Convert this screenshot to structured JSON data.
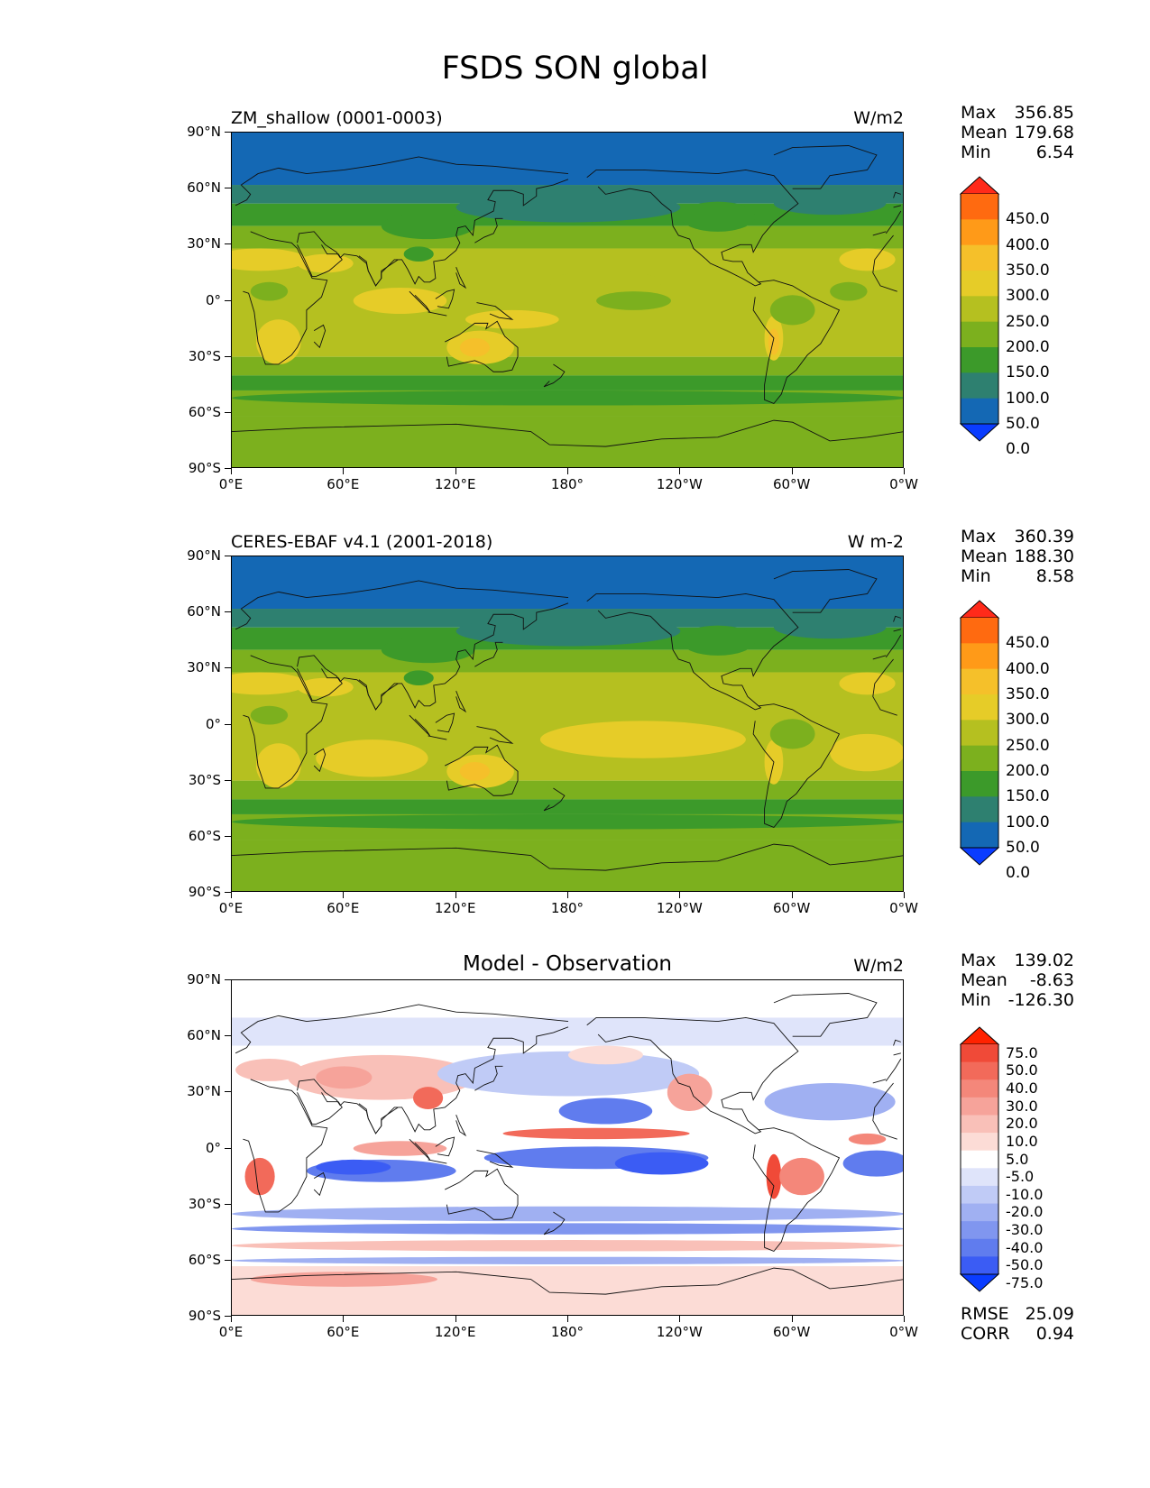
{
  "title": "FSDS SON global",
  "axes": {
    "lat_ticks": [
      "90°N",
      "60°N",
      "30°N",
      "0°",
      "30°S",
      "60°S",
      "90°S"
    ],
    "lon_ticks": [
      "0°E",
      "60°E",
      "120°E",
      "180°",
      "120°W",
      "60°W",
      "0°W"
    ]
  },
  "stat_labels": {
    "max": "Max",
    "mean": "Mean",
    "min": "Min",
    "rmse": "RMSE",
    "corr": "CORR"
  },
  "panels": [
    {
      "title": "ZM_shallow (0001-0003)",
      "units": "W/m2",
      "stats": {
        "max": "356.85",
        "mean": "179.68",
        "min": "6.54"
      }
    },
    {
      "title": "CERES-EBAF v4.1 (2001-2018)",
      "units": "W m-2",
      "stats": {
        "max": "360.39",
        "mean": "188.30",
        "min": "8.58"
      }
    },
    {
      "title": "Model - Observation",
      "units": "W/m2",
      "stats": {
        "max": "139.02",
        "mean": "-8.63",
        "min": "-126.30",
        "rmse": "25.09",
        "corr": "0.94"
      }
    }
  ],
  "colorbars": {
    "field": {
      "labels": [
        "450.0",
        "400.0",
        "350.0",
        "300.0",
        "250.0",
        "200.0",
        "150.0",
        "100.0",
        "50.0",
        "0.0"
      ],
      "colors": [
        "#ff2a1a",
        "#ff6a10",
        "#ff9a18",
        "#f5c02a",
        "#e6cc28",
        "#b5c020",
        "#7cb01e",
        "#3c9a2a",
        "#2e8070",
        "#1468b4",
        "#0a3cff"
      ]
    },
    "diff": {
      "labels": [
        "75.0",
        "50.0",
        "40.0",
        "30.0",
        "20.0",
        "10.0",
        "5.0",
        "-5.0",
        "-10.0",
        "-20.0",
        "-30.0",
        "-40.0",
        "-50.0",
        "-75.0"
      ],
      "colors": [
        "#ff2200",
        "#f04a38",
        "#f26a5a",
        "#f4877a",
        "#f6a39a",
        "#f9c0b8",
        "#fcdcd6",
        "#ffffff",
        "#dfe4fa",
        "#c0cbf6",
        "#a0b0f2",
        "#8096ef",
        "#607cee",
        "#3b5cf4",
        "#0a3cff"
      ]
    }
  },
  "chart_data": [
    {
      "type": "heatmap",
      "title": "ZM_shallow (0001-0003)",
      "units": "W/m2",
      "x_range": [
        0,
        360
      ],
      "y_range": [
        -90,
        90
      ],
      "zonal_mean_approx": {
        "lat": [
          90,
          75,
          60,
          45,
          30,
          15,
          0,
          -15,
          -30,
          -45,
          -60,
          -75,
          -90
        ],
        "value": [
          30,
          40,
          100,
          170,
          230,
          250,
          230,
          250,
          240,
          180,
          140,
          170,
          180
        ]
      },
      "levels": [
        0,
        50,
        100,
        150,
        200,
        250,
        300,
        350,
        400,
        450
      ]
    },
    {
      "type": "heatmap",
      "title": "CERES-EBAF v4.1 (2001-2018)",
      "units": "W m-2",
      "x_range": [
        0,
        360
      ],
      "y_range": [
        -90,
        90
      ],
      "zonal_mean_approx": {
        "lat": [
          90,
          75,
          60,
          45,
          30,
          15,
          0,
          -15,
          -30,
          -45,
          -60,
          -75,
          -90
        ],
        "value": [
          30,
          40,
          100,
          170,
          230,
          250,
          260,
          270,
          250,
          190,
          150,
          170,
          180
        ]
      },
      "levels": [
        0,
        50,
        100,
        150,
        200,
        250,
        300,
        350,
        400,
        450
      ]
    },
    {
      "type": "heatmap",
      "title": "Model - Observation",
      "units": "W/m2",
      "x_range": [
        0,
        360
      ],
      "y_range": [
        -90,
        90
      ],
      "levels": [
        -75,
        -50,
        -40,
        -30,
        -20,
        -10,
        -5,
        5,
        10,
        20,
        30,
        40,
        50,
        75
      ]
    }
  ]
}
